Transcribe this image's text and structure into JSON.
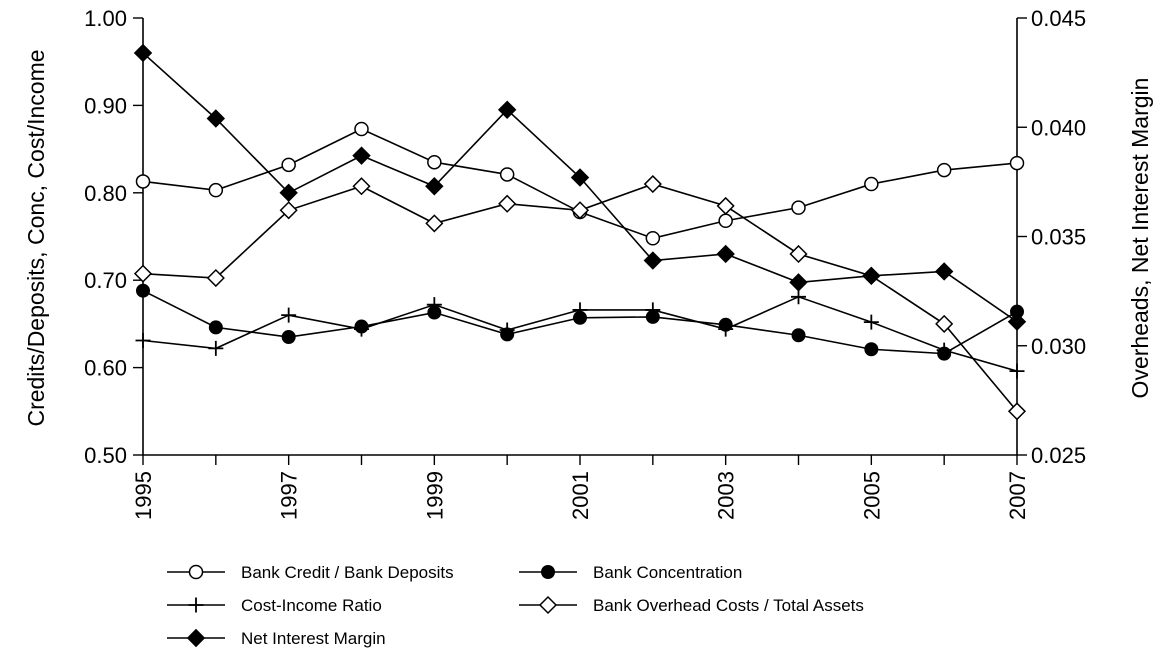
{
  "chart_data": {
    "type": "line",
    "x": [
      1995,
      1996,
      1997,
      1998,
      1999,
      2000,
      2001,
      2002,
      2003,
      2004,
      2005,
      2006,
      2007
    ],
    "x_tick_labels": [
      "1995",
      "1997",
      "1999",
      "2001",
      "2003",
      "2005",
      "2007"
    ],
    "xlim": [
      1995,
      2007
    ],
    "ylabel_left": "Credits/Deposits, Conc, Cost/Income",
    "ylabel_right": "Overheads, Net Interest Margin",
    "ylim_left": [
      0.5,
      1.0
    ],
    "ylim_right": [
      0.025,
      0.045
    ],
    "yticks_left": [
      "0.50",
      "0.60",
      "0.70",
      "0.80",
      "0.90",
      "1.00"
    ],
    "yticks_right": [
      "0.025",
      "0.030",
      "0.035",
      "0.040",
      "0.045"
    ],
    "grid": false,
    "legend_position": "bottom",
    "series": [
      {
        "name": "Bank Credit / Bank Deposits",
        "axis": "left",
        "marker": "open-circle",
        "values": [
          0.813,
          0.803,
          0.832,
          0.873,
          0.835,
          0.821,
          0.778,
          0.748,
          0.768,
          0.783,
          0.81,
          0.826,
          0.834
        ]
      },
      {
        "name": "Bank Concentration",
        "axis": "left",
        "marker": "filled-circle",
        "values": [
          0.688,
          0.646,
          0.635,
          0.647,
          0.663,
          0.638,
          0.657,
          0.658,
          0.649,
          0.637,
          0.621,
          0.616,
          0.664
        ]
      },
      {
        "name": "Cost-Income Ratio",
        "axis": "left",
        "marker": "plus",
        "values": [
          0.631,
          0.622,
          0.66,
          0.644,
          0.672,
          0.643,
          0.666,
          0.666,
          0.644,
          0.681,
          0.652,
          0.62,
          0.596
        ]
      },
      {
        "name": "Bank Overhead Costs / Total Assets",
        "axis": "right",
        "marker": "open-diamond",
        "values": [
          0.0333,
          0.0331,
          0.0362,
          0.0373,
          0.0356,
          0.0365,
          0.0362,
          0.0374,
          0.0364,
          0.0342,
          0.0332,
          0.031,
          0.027
        ]
      },
      {
        "name": "Net Interest Margin",
        "axis": "right",
        "marker": "filled-diamond",
        "values": [
          0.0434,
          0.0404,
          0.037,
          0.0387,
          0.0373,
          0.0408,
          0.0377,
          0.0339,
          0.0342,
          0.0329,
          0.0332,
          0.0334,
          0.0311
        ]
      }
    ]
  }
}
